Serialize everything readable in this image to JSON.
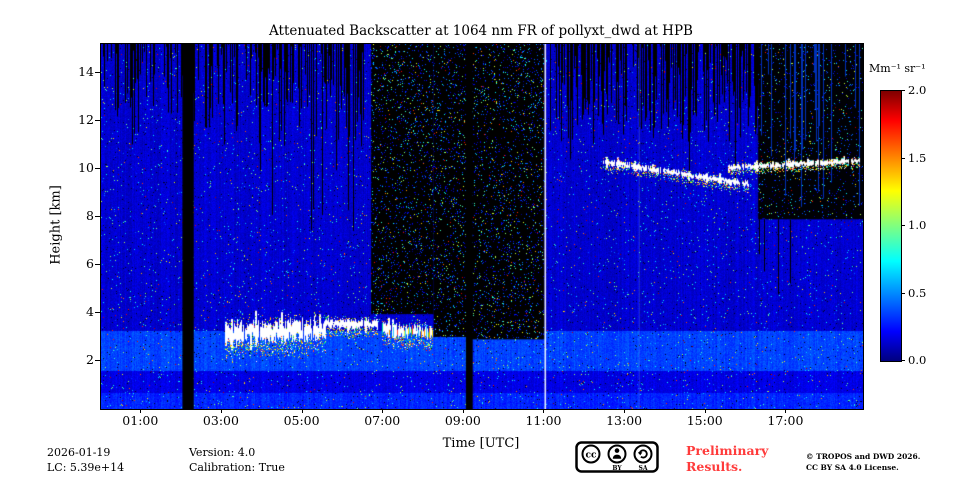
{
  "title": "Attenuated Backscatter at 1064 nm FR of pollyxt_dwd at HPB",
  "axes": {
    "xlabel": "Time [UTC]",
    "ylabel": "Height [km]",
    "xticks": [
      {
        "t": 1,
        "label": "01:00"
      },
      {
        "t": 3,
        "label": "03:00"
      },
      {
        "t": 5,
        "label": "05:00"
      },
      {
        "t": 7,
        "label": "07:00"
      },
      {
        "t": 9,
        "label": "09:00"
      },
      {
        "t": 11,
        "label": "11:00"
      },
      {
        "t": 13,
        "label": "13:00"
      },
      {
        "t": 15,
        "label": "15:00"
      },
      {
        "t": 17,
        "label": "17:00"
      }
    ],
    "yticks": [
      {
        "h": 2,
        "label": "2"
      },
      {
        "h": 4,
        "label": "4"
      },
      {
        "h": 6,
        "label": "6"
      },
      {
        "h": 8,
        "label": "8"
      },
      {
        "h": 10,
        "label": "10"
      },
      {
        "h": 12,
        "label": "12"
      },
      {
        "h": 14,
        "label": "14"
      }
    ]
  },
  "colorbar": {
    "label": "Mm⁻¹ sr⁻¹",
    "colormap": "jet",
    "ticks": [
      {
        "value": 2.0,
        "label": "2.0"
      },
      {
        "value": 1.5,
        "label": "1.5"
      },
      {
        "value": 1.0,
        "label": "1.0"
      },
      {
        "value": 0.5,
        "label": "0.5"
      },
      {
        "value": 0.0,
        "label": "0.0"
      }
    ]
  },
  "footer": {
    "date": "2026-01-19",
    "lc": "LC: 5.39e+14",
    "version": "Version: 4.0",
    "calibration": "Calibration: True",
    "preliminary_line1": "Preliminary",
    "preliminary_line2": "Results.",
    "credit_line1": "© TROPOS and DWD 2026.",
    "credit_line2": "CC BY SA 4.0 License.",
    "badge": {
      "cc": "cc",
      "by": "BY",
      "sa": "SA"
    },
    "accent_red": "#ff3b3b"
  },
  "chart_data": {
    "type": "heatmap",
    "x_range": [
      0,
      18.9
    ],
    "y_range": [
      0,
      15.2
    ],
    "value_range": [
      0,
      2.0
    ],
    "colormap": "jet",
    "seed": 123457,
    "palette": [
      "#d4ff4d",
      "#ffe400",
      "#35d435",
      "#00dcA0",
      "#ff9a00",
      "#ff4433",
      "#2fc8ff",
      "#ffffff"
    ],
    "summary": [
      "blue clear-sky background with speckle noise",
      "bright aerosol/cloud layer near 3-3.8 km between 03:00 and 08:10",
      "cirrus streak descending 10.3 to 9.3 km between 12:30 and 16:00",
      "cirrus streak near 10.1-10.4 km between 15:30 and 18:45",
      "full-column data gaps near 02:10 and 09:10",
      "low-SNR black speckled region 06:45-11:00 above ~3-4 km and after 16:20 above ~8 km",
      "white calibration line at 11:00"
    ],
    "ops": [
      {
        "type": "base",
        "default": 0.16,
        "noise": 0.1,
        "dark_p": 0.012,
        "bands": [
          {
            "h0": 0,
            "h1": 0.7,
            "v": 0.32
          },
          {
            "h0": 0.7,
            "h1": 1.6,
            "v": 0.2
          },
          {
            "h0": 1.6,
            "h1": 3.25,
            "v": 0.38
          }
        ]
      },
      {
        "type": "vstreaks",
        "t0": 0.05,
        "t1": 6.7,
        "h_top": 15.2,
        "h_min": 10.9,
        "density": 0.5,
        "color": "#000000"
      },
      {
        "type": "vstreaks",
        "t0": 0.05,
        "t1": 6.7,
        "h_top": 15.2,
        "h_min": 7.0,
        "density": 0.05,
        "color": "#000000"
      },
      {
        "type": "vstreaks",
        "t0": 11.1,
        "t1": 16.3,
        "h_top": 15.2,
        "h_min": 11.0,
        "density": 0.55,
        "color": "#000000"
      },
      {
        "type": "vstreaks",
        "t0": 11.1,
        "t1": 16.3,
        "h_top": 15.2,
        "h_min": 8.8,
        "density": 0.05,
        "color": "#000000"
      },
      {
        "type": "noise_rect",
        "t0": 6.7,
        "t1": 8.25,
        "h0": 3.95,
        "h1": 15.2,
        "bg": "#000000",
        "density": 0.1
      },
      {
        "type": "noise_rect",
        "t0": 8.25,
        "t1": 9.1,
        "h0": 3.0,
        "h1": 15.2,
        "bg": "#000000",
        "density": 0.1
      },
      {
        "type": "noise_rect",
        "t0": 9.2,
        "t1": 11.0,
        "h0": 2.9,
        "h1": 15.2,
        "bg": "#000000",
        "density": 0.1
      },
      {
        "type": "noise_rect",
        "t0": 16.3,
        "t1": 18.9,
        "h0": 7.9,
        "h1": 15.2,
        "bg": "#000105",
        "density": 0.06
      },
      {
        "type": "vstreaks",
        "t0": 16.35,
        "t1": 18.85,
        "h_top": 15.2,
        "h_min": 8.1,
        "density": 0.22,
        "color": "#0030b8"
      },
      {
        "type": "vstreaks",
        "t0": 16.3,
        "t1": 17.2,
        "h_top": 7.9,
        "h_min": 4.5,
        "density": 0.08,
        "color": "#000000"
      },
      {
        "type": "rect",
        "t0": 2.02,
        "t1": 2.3,
        "h0": 0,
        "h1": 15.2,
        "color": "#000000"
      },
      {
        "type": "rect",
        "t0": 9.05,
        "t1": 9.22,
        "h0": 0,
        "h1": 15.2,
        "color": "#000000"
      },
      {
        "type": "vline",
        "t": 13.35,
        "color": "rgba(130,190,255,0.30)",
        "w": 1
      },
      {
        "type": "vline",
        "t": 11.02,
        "color": "rgba(255,255,255,0.9)",
        "w": 1.6
      },
      {
        "type": "cloud",
        "t0": 3.05,
        "t1": 5.55,
        "c0": 3.1,
        "c1": 3.35,
        "half": 0.45,
        "fringe": 0.6,
        "dots": 6,
        "gap": 0.04,
        "colorful": false
      },
      {
        "type": "cloud",
        "t0": 5.55,
        "t1": 6.85,
        "c0": 3.55,
        "c1": 3.5,
        "half": 0.2,
        "fringe": 0.35,
        "dots": 4,
        "gap": 0.05,
        "colorful": false
      },
      {
        "type": "cloud",
        "t0": 6.95,
        "t1": 8.2,
        "c0": 3.3,
        "c1": 3.2,
        "half": 0.26,
        "fringe": 0.5,
        "dots": 5,
        "gap": 0.12,
        "colorful": true
      },
      {
        "type": "cloud",
        "t0": 12.45,
        "t1": 16.05,
        "c0": 10.3,
        "c1": 9.35,
        "half": 0.13,
        "fringe": 0.25,
        "dots": 3,
        "gap": 0.1,
        "colorful": false
      },
      {
        "type": "cloud",
        "t0": 15.55,
        "t1": 18.8,
        "c0": 10.05,
        "c1": 10.35,
        "half": 0.12,
        "fringe": 0.2,
        "dots": 3,
        "gap": 0.08,
        "colorful": false
      }
    ]
  }
}
